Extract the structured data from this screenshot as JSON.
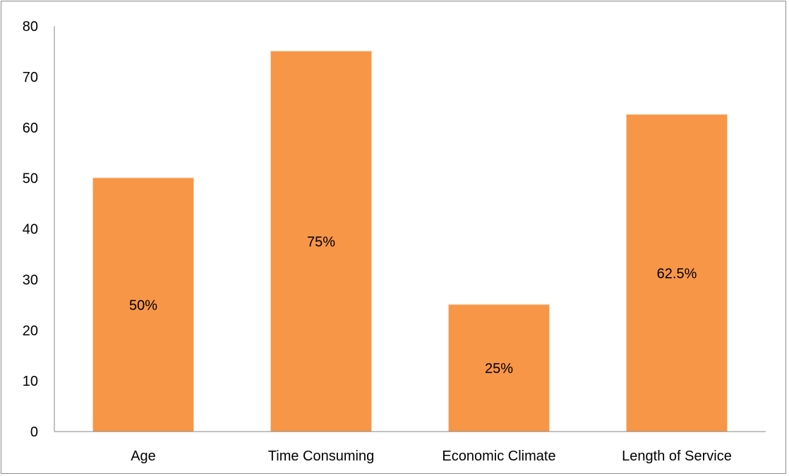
{
  "chart_data": {
    "type": "bar",
    "categories": [
      "Age",
      "Time Consuming",
      "Economic Climate",
      "Length of Service"
    ],
    "values": [
      50,
      75,
      25,
      62.5
    ],
    "data_labels": [
      "50%",
      "75%",
      "25%",
      "62.5%"
    ],
    "title": "",
    "xlabel": "",
    "ylabel": "",
    "ylim": [
      0,
      80
    ],
    "yticks": [
      0,
      10,
      20,
      30,
      40,
      50,
      60,
      70,
      80
    ],
    "grid": false,
    "legend": "none",
    "bar_color": "#f79646",
    "bar_edge_color": "#fbd5b5",
    "axis_color": "#868686"
  }
}
